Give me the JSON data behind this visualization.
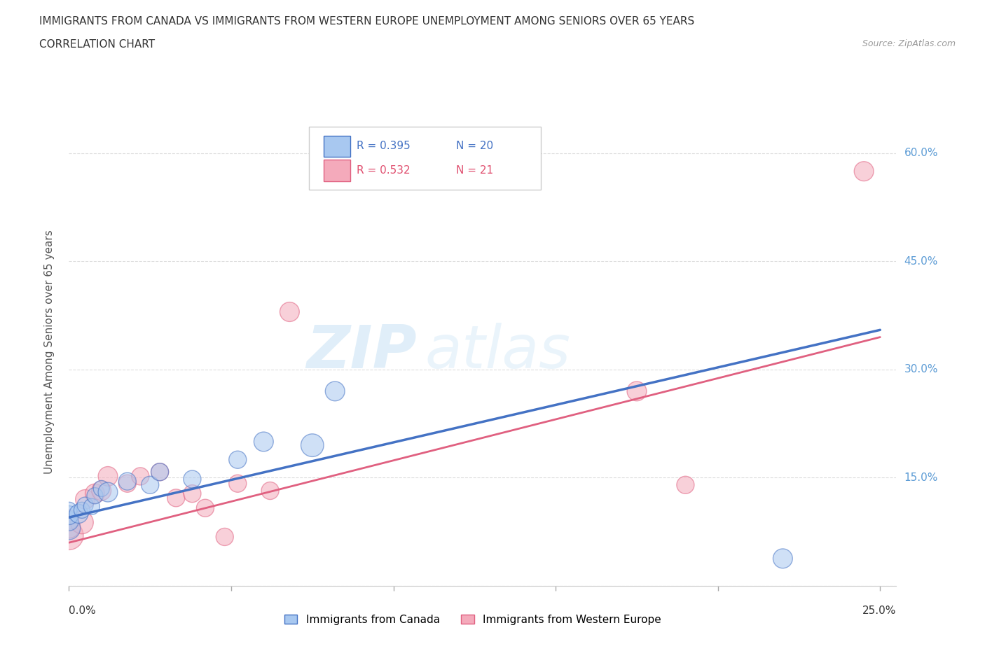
{
  "title_line1": "IMMIGRANTS FROM CANADA VS IMMIGRANTS FROM WESTERN EUROPE UNEMPLOYMENT AMONG SENIORS OVER 65 YEARS",
  "title_line2": "CORRELATION CHART",
  "source": "Source: ZipAtlas.com",
  "ylabel": "Unemployment Among Seniors over 65 years",
  "legend_canada_r": "R = 0.395",
  "legend_canada_n": "N = 20",
  "legend_europe_r": "R = 0.532",
  "legend_europe_n": "N = 21",
  "canada_color": "#a8c8f0",
  "europe_color": "#f4aabb",
  "canada_line_color": "#4472c4",
  "europe_line_color": "#e06080",
  "watermark_zip": "ZIP",
  "watermark_atlas": "atlas",
  "canada_x": [
    0.0,
    0.0,
    0.0,
    0.0,
    0.003,
    0.004,
    0.005,
    0.007,
    0.008,
    0.01,
    0.012,
    0.018,
    0.025,
    0.028,
    0.038,
    0.052,
    0.06,
    0.075,
    0.082,
    0.22
  ],
  "canada_y": [
    0.08,
    0.09,
    0.098,
    0.105,
    0.1,
    0.105,
    0.112,
    0.11,
    0.125,
    0.135,
    0.13,
    0.145,
    0.14,
    0.158,
    0.148,
    0.175,
    0.2,
    0.195,
    0.27,
    0.038
  ],
  "canada_sizes": [
    220,
    160,
    150,
    110,
    150,
    110,
    110,
    110,
    110,
    110,
    160,
    130,
    130,
    130,
    130,
    130,
    160,
    220,
    160,
    160
  ],
  "europe_x": [
    0.0,
    0.0,
    0.0,
    0.004,
    0.005,
    0.008,
    0.01,
    0.012,
    0.018,
    0.022,
    0.028,
    0.033,
    0.038,
    0.042,
    0.048,
    0.052,
    0.062,
    0.068,
    0.175,
    0.19,
    0.245
  ],
  "europe_y": [
    0.07,
    0.082,
    0.092,
    0.088,
    0.12,
    0.128,
    0.132,
    0.152,
    0.142,
    0.152,
    0.158,
    0.122,
    0.128,
    0.108,
    0.068,
    0.142,
    0.132,
    0.38,
    0.27,
    0.14,
    0.575
  ],
  "europe_sizes": [
    350,
    220,
    160,
    220,
    160,
    160,
    160,
    160,
    130,
    130,
    130,
    130,
    130,
    130,
    130,
    130,
    130,
    160,
    160,
    130,
    160
  ],
  "canada_line_x0": 0.0,
  "canada_line_y0": 0.095,
  "canada_line_x1": 0.25,
  "canada_line_y1": 0.355,
  "europe_line_x0": 0.0,
  "europe_line_y0": 0.06,
  "europe_line_x1": 0.25,
  "europe_line_y1": 0.345,
  "xlim": [
    0.0,
    0.255
  ],
  "ylim": [
    0.0,
    0.65
  ],
  "ytick_vals": [
    0.0,
    0.15,
    0.3,
    0.45,
    0.6
  ],
  "ytick_labels": [
    "",
    "15.0%",
    "30.0%",
    "45.0%",
    "60.0%"
  ],
  "xtick_vals": [
    0.0,
    0.05,
    0.1,
    0.15,
    0.2,
    0.25
  ],
  "background_color": "#ffffff",
  "grid_color": "#dddddd"
}
